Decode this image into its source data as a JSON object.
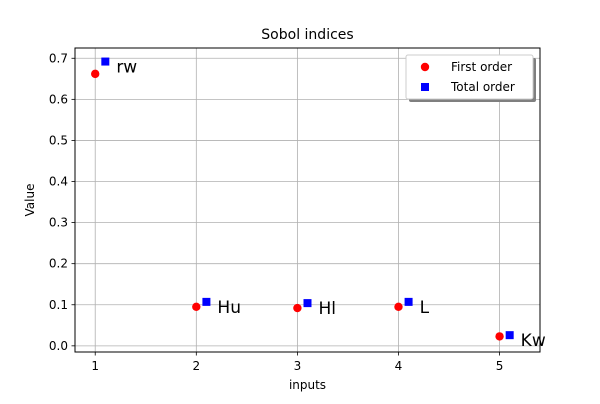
{
  "chart_data": {
    "type": "scatter",
    "title": "Sobol indices",
    "xlabel": "inputs",
    "ylabel": "Value",
    "xlim": [
      0.8,
      5.4
    ],
    "ylim": [
      -0.015,
      0.725
    ],
    "xticks": [
      "1",
      "2",
      "3",
      "4",
      "5"
    ],
    "yticks": [
      "0.0",
      "0.1",
      "0.2",
      "0.3",
      "0.4",
      "0.5",
      "0.6",
      "0.7"
    ],
    "grid": true,
    "legend_position": "top-right",
    "point_labels": [
      "rw",
      "Hu",
      "Hl",
      "L",
      "Kw"
    ],
    "series": [
      {
        "name": "First order",
        "marker": "circle",
        "color": "#ff0000",
        "x": [
          1,
          2,
          3,
          4,
          5
        ],
        "y": [
          0.662,
          0.095,
          0.092,
          0.095,
          0.023
        ]
      },
      {
        "name": "Total order",
        "marker": "square",
        "color": "#0000ff",
        "x": [
          1.1,
          2.1,
          3.1,
          4.1,
          5.1
        ],
        "y": [
          0.692,
          0.107,
          0.104,
          0.107,
          0.026
        ]
      }
    ]
  }
}
